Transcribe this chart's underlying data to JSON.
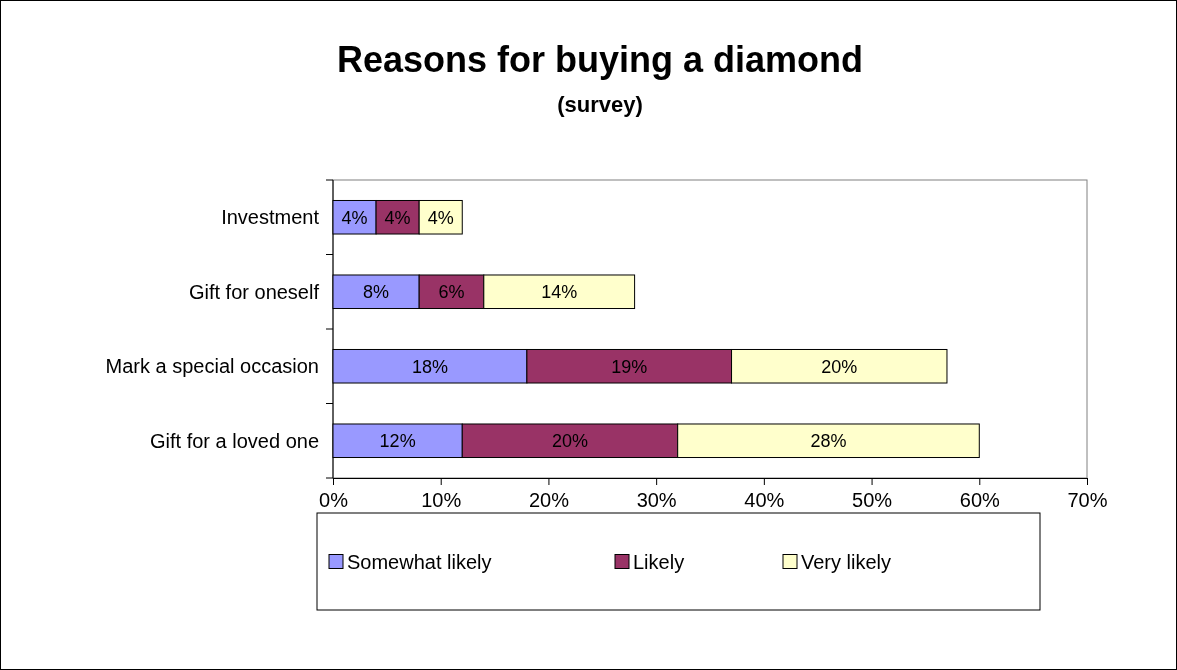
{
  "chart_data": {
    "type": "bar",
    "orientation": "horizontal",
    "stacked": true,
    "title": "Reasons for buying a diamond",
    "subtitle": "(survey)",
    "categories": [
      "Investment",
      "Gift for oneself",
      "Mark a special occasion",
      "Gift for a loved one"
    ],
    "series": [
      {
        "name": "Somewhat likely",
        "color": "#9999ff",
        "values": [
          4,
          8,
          18,
          12
        ],
        "value_labels": [
          "4%",
          "8%",
          "18%",
          "12%"
        ]
      },
      {
        "name": "Likely",
        "color": "#993366",
        "values": [
          4,
          6,
          19,
          20
        ],
        "value_labels": [
          "4%",
          "6%",
          "19%",
          "20%"
        ]
      },
      {
        "name": "Very likely",
        "color": "#ffffcc",
        "values": [
          4,
          14,
          20,
          28
        ],
        "value_labels": [
          "4%",
          "14%",
          "20%",
          "28%"
        ]
      }
    ],
    "xlim": [
      0,
      70
    ],
    "xticks": [
      {
        "value": 0,
        "label": "0%"
      },
      {
        "value": 10,
        "label": "10%"
      },
      {
        "value": 20,
        "label": "20%"
      },
      {
        "value": 30,
        "label": "30%"
      },
      {
        "value": 40,
        "label": "40%"
      },
      {
        "value": 50,
        "label": "50%"
      },
      {
        "value": 60,
        "label": "60%"
      },
      {
        "value": 70,
        "label": "70%"
      }
    ],
    "grid": false,
    "legend": "bottom"
  }
}
